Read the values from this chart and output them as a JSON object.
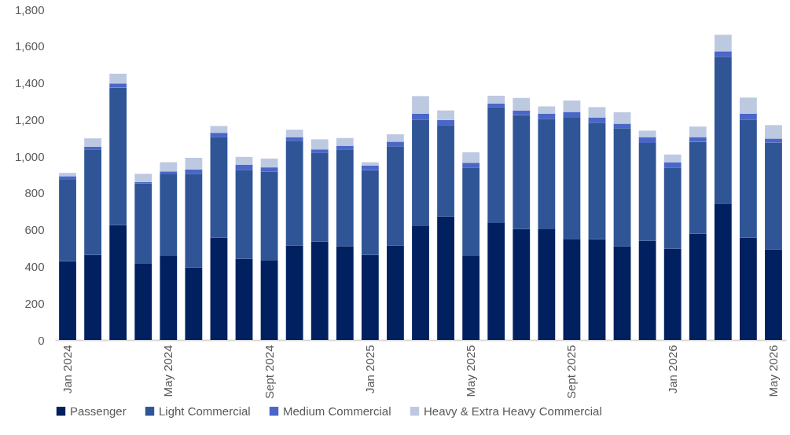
{
  "chart_data": {
    "type": "bar",
    "stacked": true,
    "categories": [
      "Jan 2024",
      null,
      null,
      null,
      "May 2024",
      null,
      null,
      null,
      "Sept 2024",
      null,
      null,
      null,
      "Jan 2025",
      null,
      null,
      null,
      "May 2025",
      null,
      null,
      null,
      "Sept 2025",
      null,
      null,
      null,
      "Jan 2026",
      null,
      null,
      null,
      "May 2026"
    ],
    "series": [
      {
        "name": "Passenger",
        "color": "#002060",
        "values": [
          430,
          463,
          625,
          418,
          458,
          396,
          558,
          441,
          432,
          515,
          535,
          511,
          463,
          515,
          620,
          672,
          458,
          637,
          604,
          603,
          550,
          549,
          510,
          540,
          497,
          578,
          743,
          557,
          493
        ]
      },
      {
        "name": "Light Commercial",
        "color": "#2f5597",
        "values": [
          442,
          572,
          750,
          434,
          444,
          509,
          548,
          483,
          484,
          567,
          483,
          524,
          462,
          540,
          578,
          498,
          479,
          629,
          621,
          602,
          660,
          634,
          643,
          533,
          443,
          502,
          799,
          641,
          582
        ]
      },
      {
        "name": "Medium Commercial",
        "color": "#4a66c8",
        "values": [
          20,
          18,
          22,
          8,
          16,
          23,
          22,
          31,
          24,
          23,
          20,
          23,
          25,
          25,
          35,
          28,
          28,
          22,
          25,
          28,
          32,
          29,
          25,
          32,
          28,
          25,
          30,
          35,
          22
        ]
      },
      {
        "name": "Heavy & Extra Heavy Commercial",
        "color": "#bdc9e1",
        "values": [
          18,
          45,
          53,
          45,
          50,
          64,
          37,
          42,
          48,
          40,
          55,
          42,
          18,
          40,
          95,
          52,
          57,
          42,
          68,
          39,
          62,
          56,
          62,
          35,
          42,
          57,
          90,
          87,
          73
        ]
      }
    ],
    "ylim": [
      0,
      1800
    ],
    "yticks": [
      0,
      200,
      400,
      600,
      800,
      {
        "value": 1000,
        "label": "1,000"
      },
      {
        "value": 1200,
        "label": "1,200"
      },
      {
        "value": 1400,
        "label": "1,400"
      },
      {
        "value": 1600,
        "label": "1,600"
      },
      {
        "value": 1800,
        "label": "1,800"
      }
    ],
    "grid": false,
    "legend": "bottom"
  }
}
